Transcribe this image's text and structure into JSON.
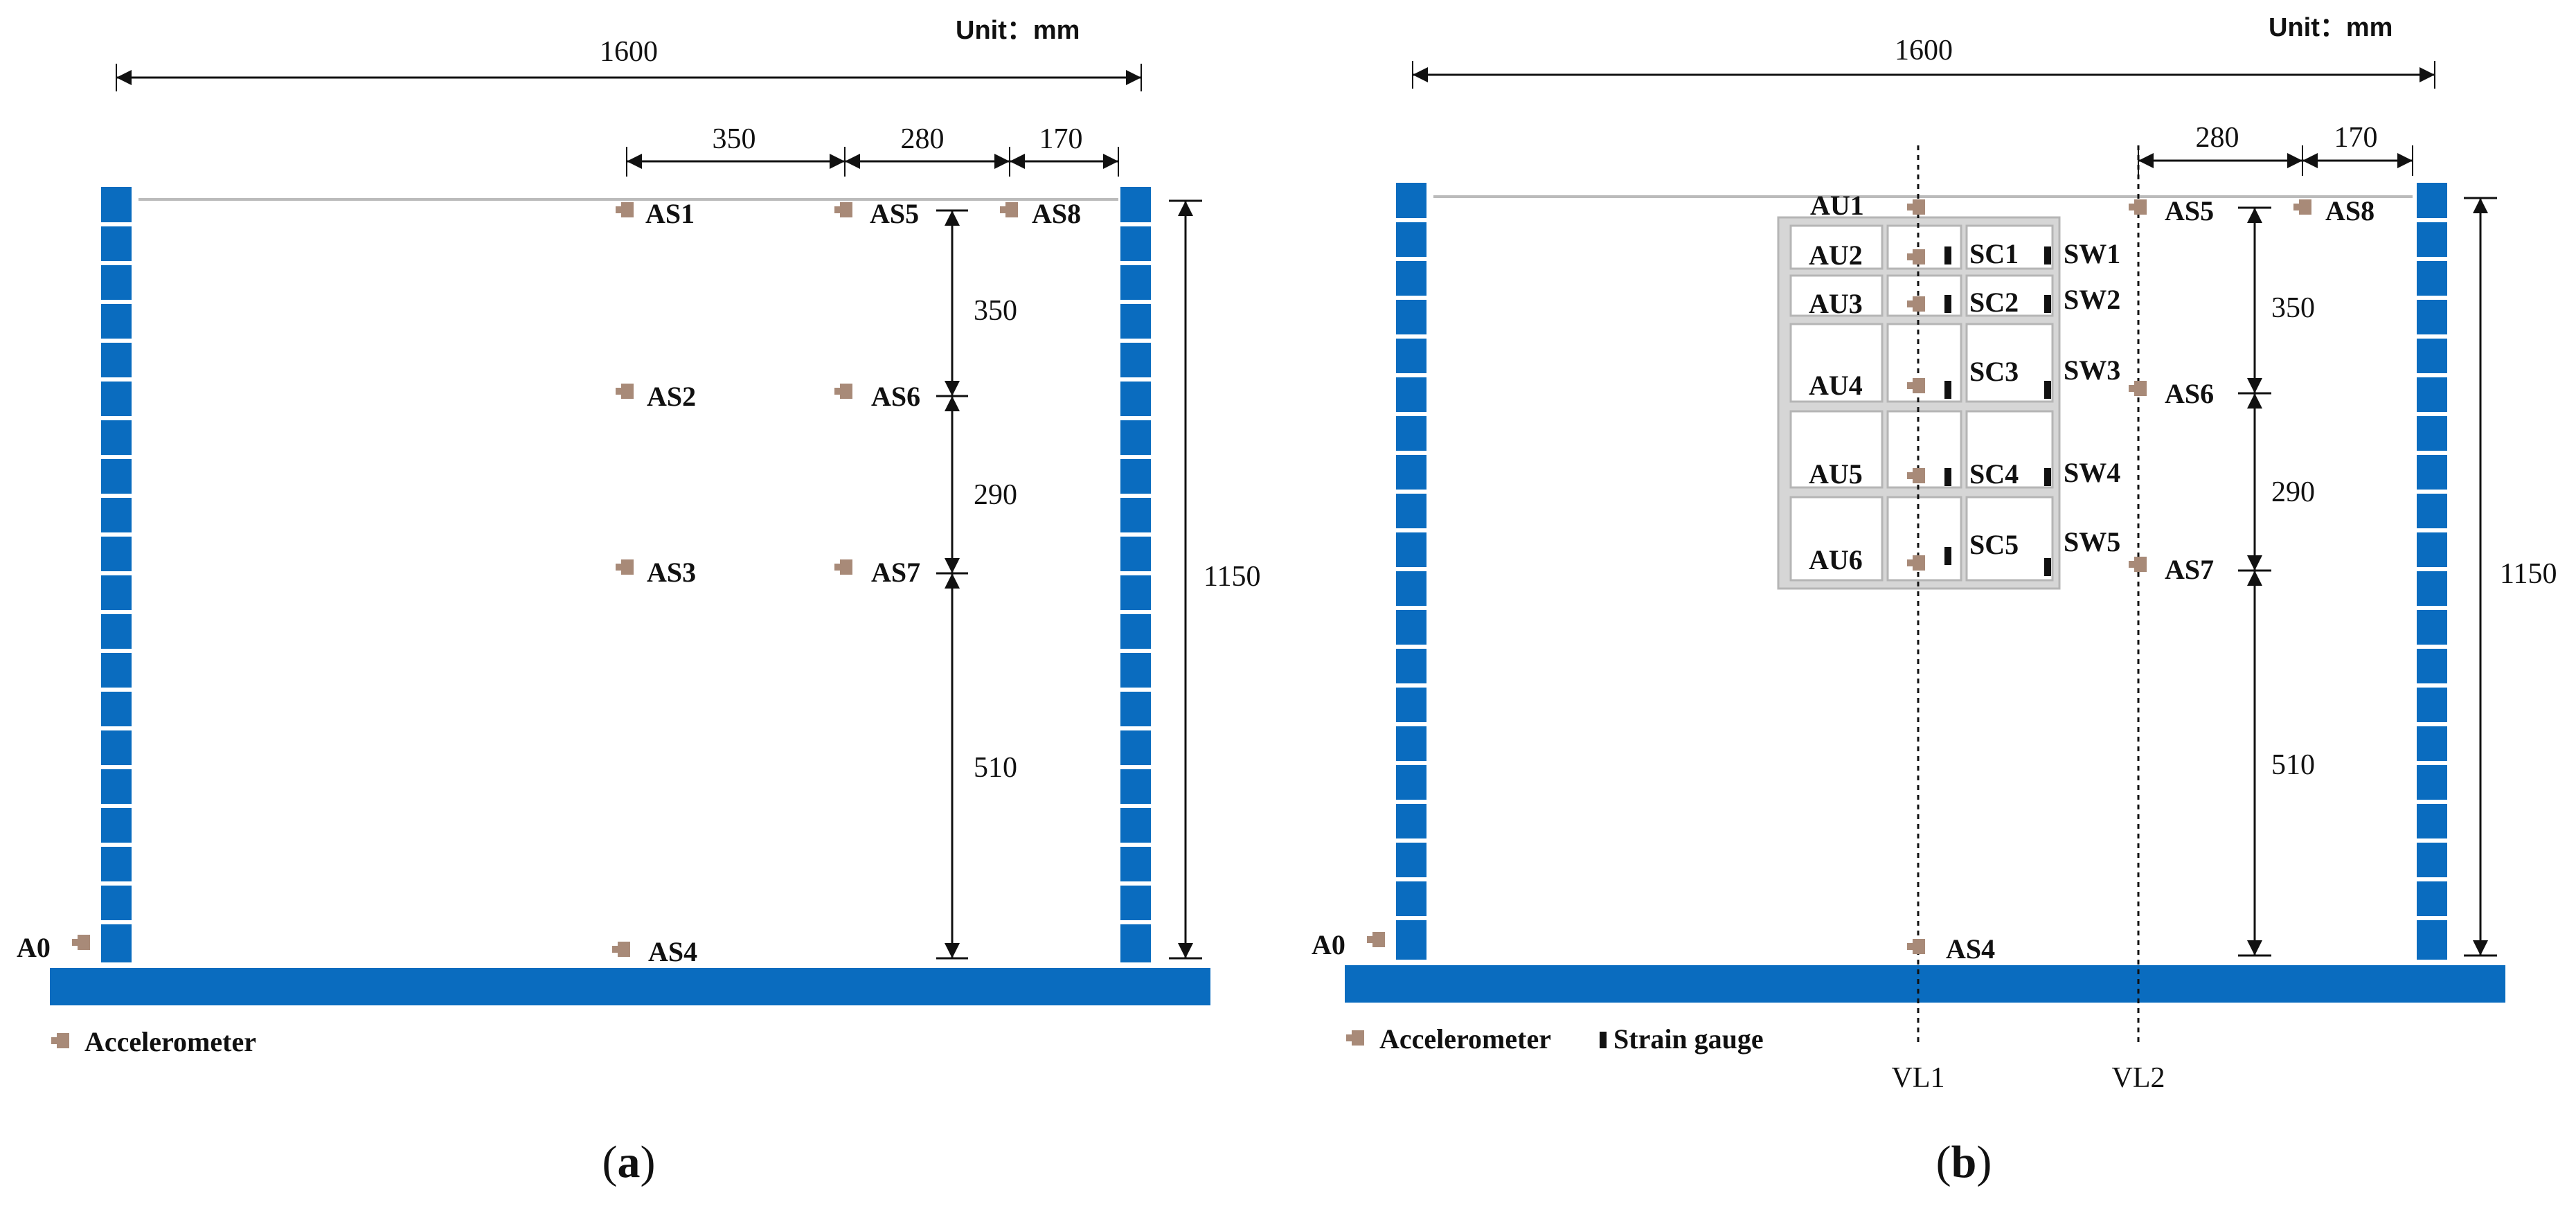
{
  "colors": {
    "column_blue": "#0a6cbf",
    "sensor_brown": "#a88a78",
    "gauge_black": "#111111",
    "slab_gray": "#bbbbbb"
  },
  "panel_a": {
    "unit_label": "Unit：mm",
    "dim_total": "1600",
    "dim_350_top": "350",
    "dim_280_top": "280",
    "dim_170_top": "170",
    "dim_v_350": "350",
    "dim_v_290": "290",
    "dim_v_510": "510",
    "dim_height": "1150",
    "sensors": {
      "AS1": "AS1",
      "AS2": "AS2",
      "AS3": "AS3",
      "AS4": "AS4",
      "AS5": "AS5",
      "AS6": "AS6",
      "AS7": "AS7",
      "AS8": "AS8",
      "A0": "A0"
    },
    "legend_accelerometer": "Accelerometer",
    "caption_open": "(",
    "caption_letter": "a",
    "caption_close": ")"
  },
  "panel_b": {
    "unit_label": "Unit：mm",
    "dim_total": "1600",
    "dim_280_top": "280",
    "dim_170_top": "170",
    "dim_v_350": "350",
    "dim_v_290": "290",
    "dim_v_510": "510",
    "dim_height": "1150",
    "sensors": {
      "AU1": "AU1",
      "AU2": "AU2",
      "AU3": "AU3",
      "AU4": "AU4",
      "AU5": "AU5",
      "AU6": "AU6",
      "SC1": "SC1",
      "SC2": "SC2",
      "SC3": "SC3",
      "SC4": "SC4",
      "SC5": "SC5",
      "SW1": "SW1",
      "SW2": "SW2",
      "SW3": "SW3",
      "SW4": "SW4",
      "SW5": "SW5",
      "AS4": "AS4",
      "AS5": "AS5",
      "AS6": "AS6",
      "AS7": "AS7",
      "AS8": "AS8",
      "A0": "A0"
    },
    "vl1": "VL1",
    "vl2": "VL2",
    "legend_accelerometer": "Accelerometer",
    "legend_strain": "Strain gauge",
    "caption_open": "(",
    "caption_letter": "b",
    "caption_close": ")"
  }
}
